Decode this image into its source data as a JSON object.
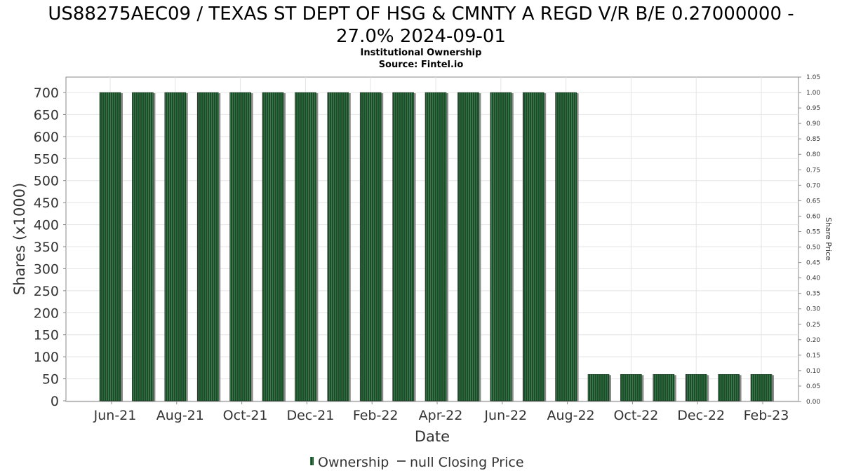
{
  "title_line1": "US88275AEC09 / TEXAS ST DEPT OF HSG & CMNTY A REGD V/R B/E 0.27000000 -",
  "title_line2": "27.0% 2024-09-01",
  "subtitle_line1": "Institutional Ownership",
  "subtitle_line2": "Source: Fintel.io",
  "chart_data": {
    "type": "bar",
    "xlabel": "Date",
    "ylabel": "Shares (x1000)",
    "y2label": "Share Price",
    "ylim": [
      0,
      700
    ],
    "y2lim": [
      0,
      1.05
    ],
    "yticks": [
      0,
      50,
      100,
      150,
      200,
      250,
      300,
      350,
      400,
      450,
      500,
      550,
      600,
      650,
      700
    ],
    "y2ticks": [
      "0.00",
      "0.05",
      "0.10",
      "0.15",
      "0.20",
      "0.25",
      "0.30",
      "0.35",
      "0.40",
      "0.45",
      "0.50",
      "0.55",
      "0.60",
      "0.65",
      "0.70",
      "0.75",
      "0.80",
      "0.85",
      "0.90",
      "0.95",
      "1.00",
      "1.05"
    ],
    "xtick_labels": [
      "Jun-21",
      "Aug-21",
      "Oct-21",
      "Dec-21",
      "Feb-22",
      "Apr-22",
      "Jun-22",
      "Aug-22",
      "Oct-22",
      "Dec-22",
      "Feb-23"
    ],
    "values": [
      700,
      700,
      700,
      700,
      700,
      700,
      700,
      700,
      700,
      700,
      700,
      700,
      700,
      700,
      700,
      60,
      60,
      60,
      60,
      60,
      60
    ],
    "grid": true,
    "legend_placement": "bottom",
    "legend": [
      {
        "name": "Ownership",
        "kind": "bar"
      },
      {
        "name": "null Closing Price",
        "kind": "line"
      }
    ],
    "colors": {
      "bar_fill": "#1e4d2b",
      "bar_stripe": "#3a7a4a",
      "bar_shadow": "#8a8a8a",
      "grid": "#e4e4e4",
      "axis": "#888888"
    }
  }
}
